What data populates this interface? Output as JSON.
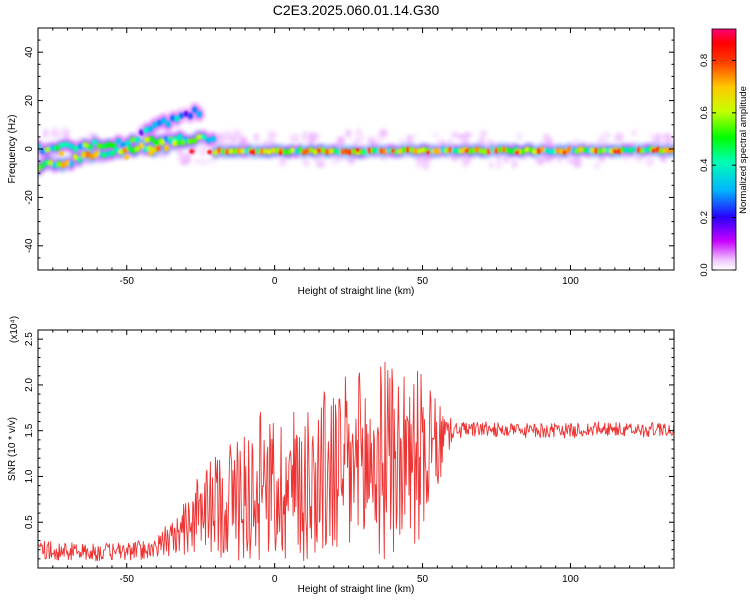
{
  "title": "C2E3.2025.060.01.14.G30",
  "chart_data": [
    {
      "type": "heatmap",
      "xlabel": "Height of straight line (km)",
      "ylabel": "Frequency (Hz)",
      "xlim": [
        -80,
        135
      ],
      "ylim": [
        -50,
        50
      ],
      "xticks": [
        -50,
        0,
        50,
        100
      ],
      "yticks": [
        -40,
        -20,
        0,
        20,
        40
      ],
      "colorbar": {
        "label": "Normalized spectral amplitude",
        "range": [
          0,
          0.92
        ],
        "ticks": [
          0.0,
          0.2,
          0.4,
          0.6,
          0.8
        ],
        "tick_labels": [
          "0.0",
          "0.2",
          "0.4",
          "0.6",
          "0.8"
        ],
        "colors": [
          "#ffffff",
          "#ff00ff",
          "#0000ff",
          "#00e5ff",
          "#00ff00",
          "#ffff00",
          "#ff8000",
          "#ff0000",
          "#ff0080"
        ]
      },
      "features": [
        {
          "x_range": [
            -80,
            -20
          ],
          "freq_start": 0,
          "freq_end": 5,
          "amplitude": 0.55
        },
        {
          "x_range": [
            -80,
            -30
          ],
          "freq_start": -7,
          "freq_end": 3,
          "amplitude": 0.7
        },
        {
          "x_range": [
            -45,
            -25
          ],
          "freq_start": 8,
          "freq_end": 16,
          "amplitude": 0.3
        },
        {
          "x_range": [
            -20,
            135
          ],
          "freq_start": -1,
          "freq_end": -0.5,
          "amplitude": 0.85
        }
      ]
    },
    {
      "type": "line",
      "xlabel": "Height of straight line (km)",
      "ylabel": "SNR (10 * v/v)",
      "y_multiplier_label": "(x10⁴)",
      "xlim": [
        -80,
        135
      ],
      "ylim": [
        0,
        2.6
      ],
      "xticks": [
        -50,
        0,
        50,
        100
      ],
      "yticks": [
        0.5,
        1.0,
        1.5,
        2.0,
        2.5
      ],
      "ytick_labels": [
        "0.5",
        "1.0",
        "1.5",
        "2.0",
        "2.5"
      ],
      "series": [
        {
          "color": "#ee3333",
          "x": [
            -80,
            -70,
            -60,
            -50,
            -40,
            -35,
            -30,
            -25,
            -20,
            -15,
            -10,
            -5,
            0,
            5,
            10,
            15,
            20,
            25,
            30,
            35,
            40,
            45,
            50,
            55,
            58,
            60,
            70,
            80,
            90,
            100,
            110,
            120,
            130,
            135
          ],
          "y": [
            0.2,
            0.18,
            0.17,
            0.18,
            0.22,
            0.3,
            0.45,
            0.6,
            0.7,
            0.75,
            0.8,
            0.85,
            0.85,
            0.9,
            0.95,
            1.0,
            1.05,
            1.05,
            1.1,
            1.15,
            1.2,
            1.2,
            1.25,
            1.3,
            1.45,
            1.5,
            1.52,
            1.5,
            1.5,
            1.5,
            1.52,
            1.5,
            1.52,
            1.52
          ],
          "amplitude": [
            0.1,
            0.1,
            0.1,
            0.1,
            0.12,
            0.2,
            0.3,
            0.45,
            0.55,
            0.7,
            0.75,
            0.8,
            0.8,
            0.85,
            0.9,
            0.95,
            1.0,
            1.05,
            1.1,
            1.1,
            1.1,
            1.05,
            0.9,
            0.5,
            0.3,
            0.1,
            0.08,
            0.08,
            0.08,
            0.08,
            0.08,
            0.08,
            0.08,
            0.08
          ]
        }
      ]
    }
  ]
}
